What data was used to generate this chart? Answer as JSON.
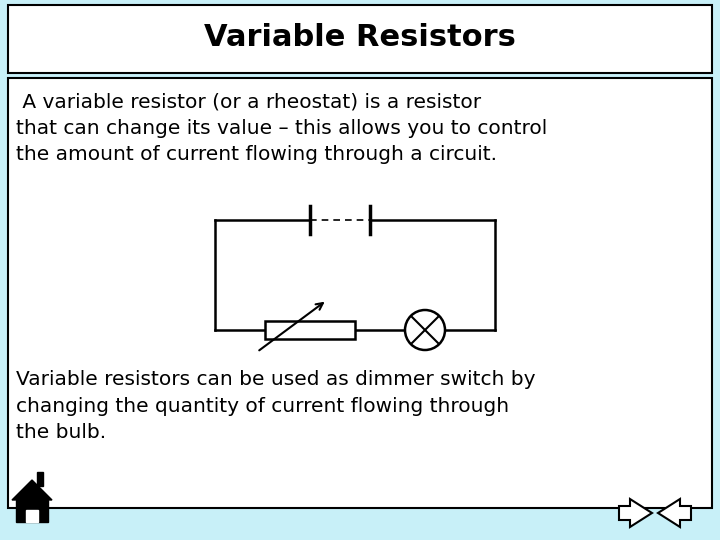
{
  "title": "Variable Resistors",
  "bg_color": "#c8f0f8",
  "title_bg": "#ffffff",
  "content_bg": "#ffffff",
  "body_text1": " A variable resistor (or a rheostat) is a resistor\nthat can change its value – this allows you to control\nthe amount of current flowing through a circuit.",
  "body_text2": "Variable resistors can be used as dimmer switch by\nchanging the quantity of current flowing through\nthe bulb.",
  "title_fontsize": 22,
  "body_fontsize": 14.5
}
